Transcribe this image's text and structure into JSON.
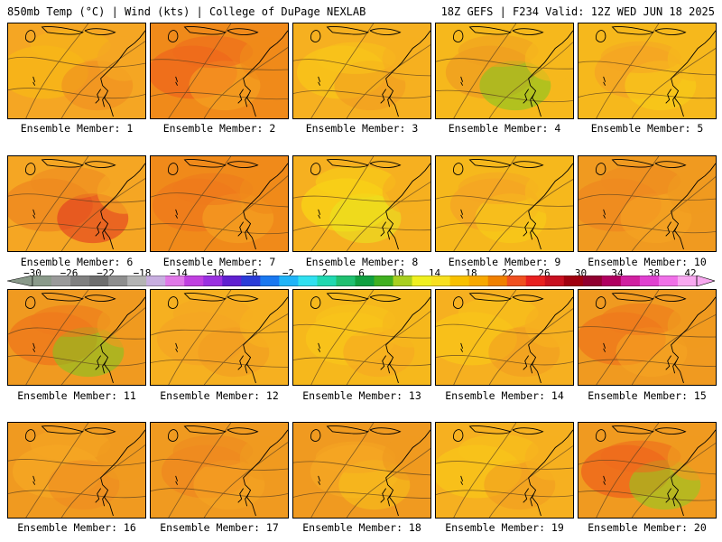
{
  "header": {
    "left": "850mb Temp (°C) | Wind (kts) | College of DuPage NEXLAB",
    "right": "18Z GEFS | F234 Valid: 12Z WED JUN 18 2025"
  },
  "colorbar": {
    "labels": [
      "-30",
      "-26",
      "-22",
      "-18",
      "-14",
      "-10",
      "-6",
      "-2",
      "2",
      "6",
      "10",
      "14",
      "18",
      "22",
      "26",
      "30",
      "34",
      "38",
      "42"
    ],
    "colors": [
      "#8a9a8a",
      "#9a9a9a",
      "#808080",
      "#6e6e6e",
      "#8e8e8e",
      "#b4b4b4",
      "#c8aee0",
      "#e078e8",
      "#c040e0",
      "#9a30e0",
      "#6020d0",
      "#2a3cd8",
      "#1a78f0",
      "#20b4f8",
      "#30e0f0",
      "#20d8b0",
      "#20c070",
      "#10a040",
      "#40b020",
      "#a8d020",
      "#f0f020",
      "#f8e020",
      "#f8c000",
      "#f8a800",
      "#f08000",
      "#f05020",
      "#e82020",
      "#c81020",
      "#a00010",
      "#900030",
      "#b00060",
      "#d020a0",
      "#e040d0",
      "#f070e8",
      "#f8a8f0"
    ]
  },
  "panels": [
    {
      "label": "Ensemble Member: 1",
      "palette": [
        "#f5a623",
        "#f7b518",
        "#ef8a20"
      ]
    },
    {
      "label": "Ensemble Member: 2",
      "palette": [
        "#f08a1a",
        "#ef6a1c",
        "#f5a623"
      ]
    },
    {
      "label": "Ensemble Member: 3",
      "palette": [
        "#f6b020",
        "#f8c31a",
        "#f09a20"
      ]
    },
    {
      "label": "Ensemble Member: 4",
      "palette": [
        "#f6b81c",
        "#f0a020",
        "#7ac820"
      ]
    },
    {
      "label": "Ensemble Member: 5",
      "palette": [
        "#f6b81c",
        "#f5a623",
        "#f8d018"
      ]
    },
    {
      "label": "Ensemble Member: 6",
      "palette": [
        "#f5a623",
        "#ef8a20",
        "#e03020"
      ]
    },
    {
      "label": "Ensemble Member: 7",
      "palette": [
        "#f08a1a",
        "#ef7a1c",
        "#f5a623"
      ]
    },
    {
      "label": "Ensemble Member: 8",
      "palette": [
        "#f6b020",
        "#f8d018",
        "#e8e820"
      ]
    },
    {
      "label": "Ensemble Member: 9",
      "palette": [
        "#f6b81c",
        "#f5a623",
        "#f8d018"
      ]
    },
    {
      "label": "Ensemble Member: 10",
      "palette": [
        "#f09a20",
        "#ef8a20",
        "#f5a623"
      ]
    },
    {
      "label": "Ensemble Member: 11",
      "palette": [
        "#f09a20",
        "#ef7a1c",
        "#7ac820"
      ]
    },
    {
      "label": "Ensemble Member: 12",
      "palette": [
        "#f6b020",
        "#f5a623",
        "#f09a20"
      ]
    },
    {
      "label": "Ensemble Member: 13",
      "palette": [
        "#f6b81c",
        "#f8c31a",
        "#f5a623"
      ]
    },
    {
      "label": "Ensemble Member: 14",
      "palette": [
        "#f6b020",
        "#f8c31a",
        "#f09a20"
      ]
    },
    {
      "label": "Ensemble Member: 15",
      "palette": [
        "#f09a20",
        "#ef7a1c",
        "#f5a623"
      ]
    },
    {
      "label": "Ensemble Member: 16",
      "palette": [
        "#f09a20",
        "#f5a623",
        "#ef8a20"
      ]
    },
    {
      "label": "Ensemble Member: 17",
      "palette": [
        "#f09a20",
        "#ef8a20",
        "#f5a623"
      ]
    },
    {
      "label": "Ensemble Member: 18",
      "palette": [
        "#f09a20",
        "#f5a623",
        "#f8c31a"
      ]
    },
    {
      "label": "Ensemble Member: 19",
      "palette": [
        "#f6b020",
        "#f8c31a",
        "#f09a20"
      ]
    },
    {
      "label": "Ensemble Member: 20",
      "palette": [
        "#f09a20",
        "#ef6a1c",
        "#8ad020"
      ]
    }
  ]
}
